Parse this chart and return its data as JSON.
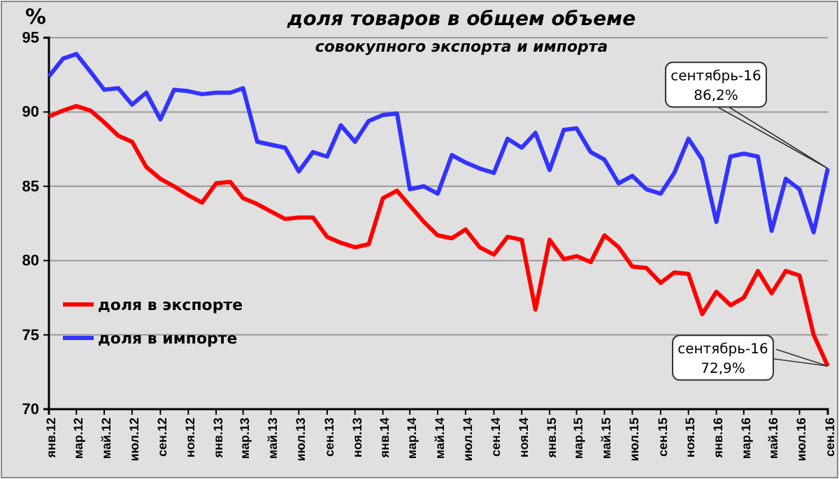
{
  "chart_data": {
    "type": "line",
    "title": "доля товаров в общем объеме",
    "subtitle": "совокупного экспорта и импорта",
    "ylabel": "%",
    "x": [
      "2012-01",
      "2012-02",
      "2012-03",
      "2012-04",
      "2012-05",
      "2012-06",
      "2012-07",
      "2012-08",
      "2012-09",
      "2012-10",
      "2012-11",
      "2012-12",
      "2013-01",
      "2013-02",
      "2013-03",
      "2013-04",
      "2013-05",
      "2013-06",
      "2013-07",
      "2013-08",
      "2013-09",
      "2013-10",
      "2013-11",
      "2013-12",
      "2014-01",
      "2014-02",
      "2014-03",
      "2014-04",
      "2014-05",
      "2014-06",
      "2014-07",
      "2014-08",
      "2014-09",
      "2014-10",
      "2014-11",
      "2014-12",
      "2015-01",
      "2015-02",
      "2015-03",
      "2015-04",
      "2015-05",
      "2015-06",
      "2015-07",
      "2015-08",
      "2015-09",
      "2015-10",
      "2015-11",
      "2015-12",
      "2016-01",
      "2016-02",
      "2016-03",
      "2016-04",
      "2016-05",
      "2016-06",
      "2016-07",
      "2016-08",
      "2016-09"
    ],
    "series": [
      {
        "name": "доля в экспорте",
        "color": "#ff0000",
        "values": [
          89.7,
          90.1,
          90.4,
          90.1,
          89.3,
          88.4,
          88.0,
          86.3,
          85.5,
          85.0,
          84.4,
          83.9,
          85.2,
          85.3,
          84.2,
          83.8,
          83.3,
          82.8,
          82.9,
          82.9,
          81.6,
          81.2,
          80.9,
          81.1,
          84.2,
          84.7,
          83.7,
          82.6,
          81.7,
          81.5,
          82.1,
          80.9,
          80.4,
          81.6,
          81.4,
          76.7,
          81.4,
          80.1,
          80.3,
          79.9,
          81.7,
          80.9,
          79.6,
          79.5,
          78.5,
          79.2,
          79.1,
          76.4,
          77.9,
          77.0,
          77.5,
          79.3,
          77.8,
          79.3,
          79.0,
          75.0,
          72.9
        ]
      },
      {
        "name": "доля в импорте",
        "color": "#3333ff",
        "values": [
          92.4,
          93.6,
          93.9,
          92.7,
          91.5,
          91.6,
          90.5,
          91.3,
          89.5,
          91.5,
          91.4,
          91.2,
          91.3,
          91.3,
          91.6,
          88.0,
          87.8,
          87.6,
          86.0,
          87.3,
          87.0,
          89.1,
          88.0,
          89.4,
          89.8,
          89.9,
          84.8,
          85.0,
          84.5,
          87.1,
          86.6,
          86.2,
          85.9,
          88.2,
          87.6,
          88.6,
          86.1,
          88.8,
          88.9,
          87.3,
          86.8,
          85.2,
          85.7,
          84.8,
          84.5,
          85.9,
          88.2,
          86.8,
          82.6,
          87.0,
          87.2,
          87.0,
          82.0,
          85.5,
          84.8,
          81.9,
          86.2
        ]
      }
    ],
    "xlim": [
      "2012-01",
      "2016-09"
    ],
    "xticks": [
      {
        "value": "2012-01",
        "label": "янв.12"
      },
      {
        "value": "2012-03",
        "label": "мар.12"
      },
      {
        "value": "2012-05",
        "label": "май.12"
      },
      {
        "value": "2012-07",
        "label": "июл.12"
      },
      {
        "value": "2012-09",
        "label": "сен.12"
      },
      {
        "value": "2012-11",
        "label": "ноя.12"
      },
      {
        "value": "2013-01",
        "label": "янв.13"
      },
      {
        "value": "2013-03",
        "label": "мар.13"
      },
      {
        "value": "2013-05",
        "label": "май.13"
      },
      {
        "value": "2013-07",
        "label": "июл.13"
      },
      {
        "value": "2013-09",
        "label": "сен.13"
      },
      {
        "value": "2013-11",
        "label": "ноя.13"
      },
      {
        "value": "2014-01",
        "label": "янв.14"
      },
      {
        "value": "2014-03",
        "label": "мар.14"
      },
      {
        "value": "2014-05",
        "label": "май.14"
      },
      {
        "value": "2014-07",
        "label": "июл.14"
      },
      {
        "value": "2014-09",
        "label": "сен.14"
      },
      {
        "value": "2014-11",
        "label": "ноя.14"
      },
      {
        "value": "2015-01",
        "label": "янв.15"
      },
      {
        "value": "2015-03",
        "label": "мар.15"
      },
      {
        "value": "2015-05",
        "label": "май.15"
      },
      {
        "value": "2015-07",
        "label": "июл.15"
      },
      {
        "value": "2015-09",
        "label": "сен.15"
      },
      {
        "value": "2015-11",
        "label": "ноя.15"
      },
      {
        "value": "2016-01",
        "label": "янв.16"
      },
      {
        "value": "2016-03",
        "label": "мар.16"
      },
      {
        "value": "2016-05",
        "label": "май.16"
      },
      {
        "value": "2016-07",
        "label": "июл.16"
      },
      {
        "value": "2016-09",
        "label": "сен.16"
      }
    ],
    "ylim": [
      70,
      95
    ],
    "yticks": [
      70,
      75,
      80,
      85,
      90,
      95
    ],
    "grid": "y",
    "legend": "bottom left",
    "marker": "none",
    "line_style": "solid",
    "annotations": [
      "сентябрь-16\n86,2%",
      "сентябрь-16\n72,9%"
    ]
  }
}
